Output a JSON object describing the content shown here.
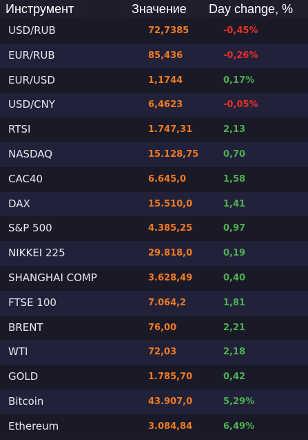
{
  "header": {
    "instrument": "Инструмент",
    "value": "Значение",
    "change": "Day change, %"
  },
  "colors": {
    "background": "#1e1d2c",
    "value": "#f07a20",
    "negative": "#e5302a",
    "positive": "#4caf50"
  },
  "rows": [
    {
      "name": "USD/RUB",
      "value": "72,7385",
      "change": "-0,45%",
      "direction": "negative"
    },
    {
      "name": "EUR/RUB",
      "value": "85,436",
      "change": "-0,26%",
      "direction": "negative"
    },
    {
      "name": "EUR/USD",
      "value": "1,1744",
      "change": "0,17%",
      "direction": "positive"
    },
    {
      "name": "USD/CNY",
      "value": "6,4623",
      "change": "-0,05%",
      "direction": "negative"
    },
    {
      "name": "RTSI",
      "value": "1.747,31",
      "change": "2,13",
      "direction": "positive"
    },
    {
      "name": "NASDAQ",
      "value": "15.128,75",
      "change": "0,70",
      "direction": "positive"
    },
    {
      "name": "CAC40",
      "value": "6.645,0",
      "change": "1,58",
      "direction": "positive"
    },
    {
      "name": "DAX",
      "value": "15.510,0",
      "change": "1,41",
      "direction": "positive"
    },
    {
      "name": "S&P 500",
      "value": "4.385,25",
      "change": "0,97",
      "direction": "positive"
    },
    {
      "name": "NIKKEI 225",
      "value": "29.818,0",
      "change": "0,19",
      "direction": "positive"
    },
    {
      "name": "SHANGHAI COMP",
      "value": "3.628,49",
      "change": "0,40",
      "direction": "positive"
    },
    {
      "name": "FTSE 100",
      "value": "7.064,2",
      "change": "1,81",
      "direction": "positive"
    },
    {
      "name": "BRENT",
      "value": "76,00",
      "change": "2,21",
      "direction": "positive"
    },
    {
      "name": "WTI",
      "value": "72,03",
      "change": "2,18",
      "direction": "positive"
    },
    {
      "name": "GOLD",
      "value": "1.785,70",
      "change": "0,42",
      "direction": "positive"
    },
    {
      "name": "Bitcoin",
      "value": "43.907,0",
      "change": "5,29%",
      "direction": "positive"
    },
    {
      "name": "Ethereum",
      "value": "3.084,84",
      "change": "6,49%",
      "direction": "positive"
    }
  ]
}
